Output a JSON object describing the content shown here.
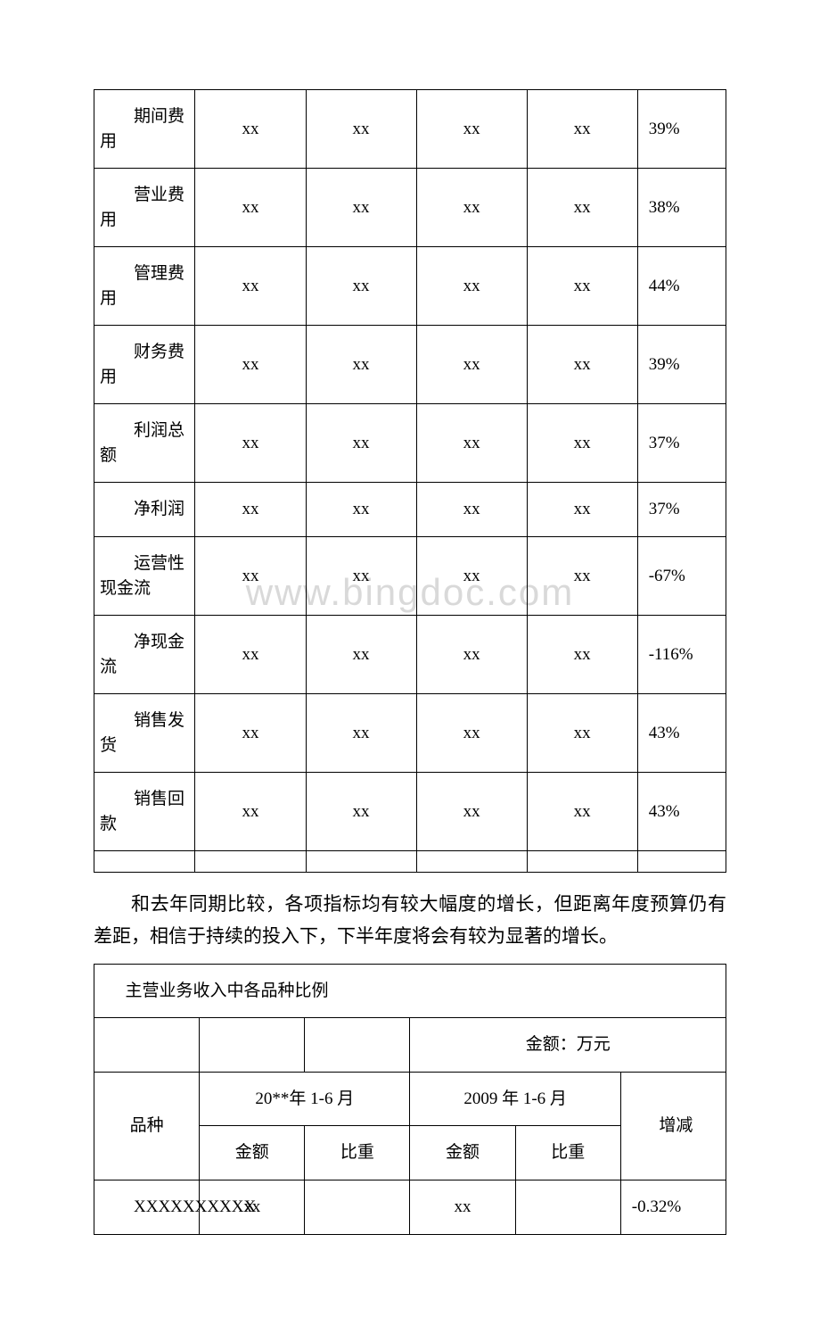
{
  "watermark": "www.bingdoc.com",
  "table1": {
    "rows": [
      {
        "label": "期间费用",
        "c1": "xx",
        "c2": "xx",
        "c3": "xx",
        "c4": "xx",
        "pct": "39%"
      },
      {
        "label": "营业费用",
        "c1": "xx",
        "c2": "xx",
        "c3": "xx",
        "c4": "xx",
        "pct": "38%"
      },
      {
        "label": "管理费用",
        "c1": "xx",
        "c2": "xx",
        "c3": "xx",
        "c4": "xx",
        "pct": "44%"
      },
      {
        "label": "财务费用",
        "c1": "xx",
        "c2": "xx",
        "c3": "xx",
        "c4": "xx",
        "pct": "39%"
      },
      {
        "label": "利润总额",
        "c1": "xx",
        "c2": "xx",
        "c3": "xx",
        "c4": "xx",
        "pct": "37%"
      },
      {
        "label": "净利润",
        "c1": "xx",
        "c2": "xx",
        "c3": "xx",
        "c4": "xx",
        "pct": "37%"
      },
      {
        "label": "运营性现金流",
        "c1": "xx",
        "c2": "xx",
        "c3": "xx",
        "c4": "xx",
        "pct": "-67%"
      },
      {
        "label": "净现金流",
        "c1": "xx",
        "c2": "xx",
        "c3": "xx",
        "c4": "xx",
        "pct": "-116%"
      },
      {
        "label": "销售发货",
        "c1": "xx",
        "c2": "xx",
        "c3": "xx",
        "c4": "xx",
        "pct": "43%"
      },
      {
        "label": "销售回款",
        "c1": "xx",
        "c2": "xx",
        "c3": "xx",
        "c4": "xx",
        "pct": "43%"
      }
    ]
  },
  "paragraph": "和去年同期比较，各项指标均有较大幅度的增长，但距离年度预算仍有差距，相信于持续的投入下，下半年度将会有较为显著的增长。",
  "table2": {
    "title": "主营业务收入中各品种比例",
    "unit": "金额：万元",
    "headers": {
      "col1": "品种",
      "period1": "20**年 1-6 月",
      "period2": "2009 年 1-6 月",
      "delta": "增减",
      "amount": "金额",
      "ratio": "比重"
    },
    "rows": [
      {
        "name": "XXXXXXXXXX",
        "a1": "xx",
        "r1": "",
        "a2": "xx",
        "r2": "",
        "delta": "-0.32%"
      }
    ]
  }
}
